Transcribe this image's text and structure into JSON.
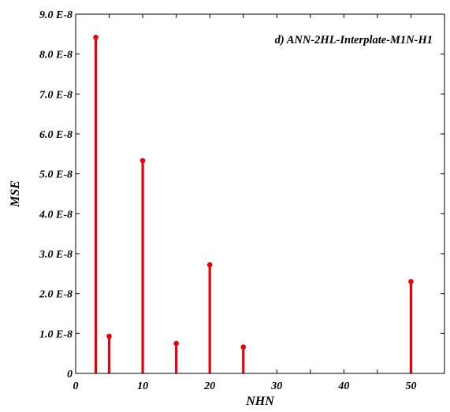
{
  "chart_data": {
    "type": "stem",
    "title": "d) ANN-2HL-Interplate-M1N-H1",
    "xlabel": "NHN",
    "ylabel": "MSE",
    "xlim": [
      0,
      55
    ],
    "ylim": [
      0,
      9e-08
    ],
    "x_ticks": [
      0,
      10,
      20,
      30,
      40,
      50
    ],
    "x_tick_labels": [
      "0",
      "10",
      "20",
      "30",
      "40",
      "50"
    ],
    "y_ticks": [
      0,
      1e-08,
      2e-08,
      3e-08,
      4e-08,
      5e-08,
      6e-08,
      7e-08,
      8e-08,
      9e-08
    ],
    "y_tick_labels": [
      "0",
      "1.0 E-8",
      "2.0 E-8",
      "3.0 E-8",
      "4.0 E-8",
      "5.0 E-8",
      "6.0 E-8",
      "7.0 E-8",
      "8.0 E-8",
      "9.0 E-8"
    ],
    "series": [
      {
        "color": "#e8000b",
        "x": [
          3,
          5,
          10,
          15,
          20,
          25,
          50
        ],
        "y": [
          8.42e-08,
          9.3e-09,
          5.33e-08,
          7.5e-09,
          2.72e-08,
          6.6e-09,
          2.3e-08
        ]
      }
    ],
    "grid": false,
    "legend": "none"
  }
}
